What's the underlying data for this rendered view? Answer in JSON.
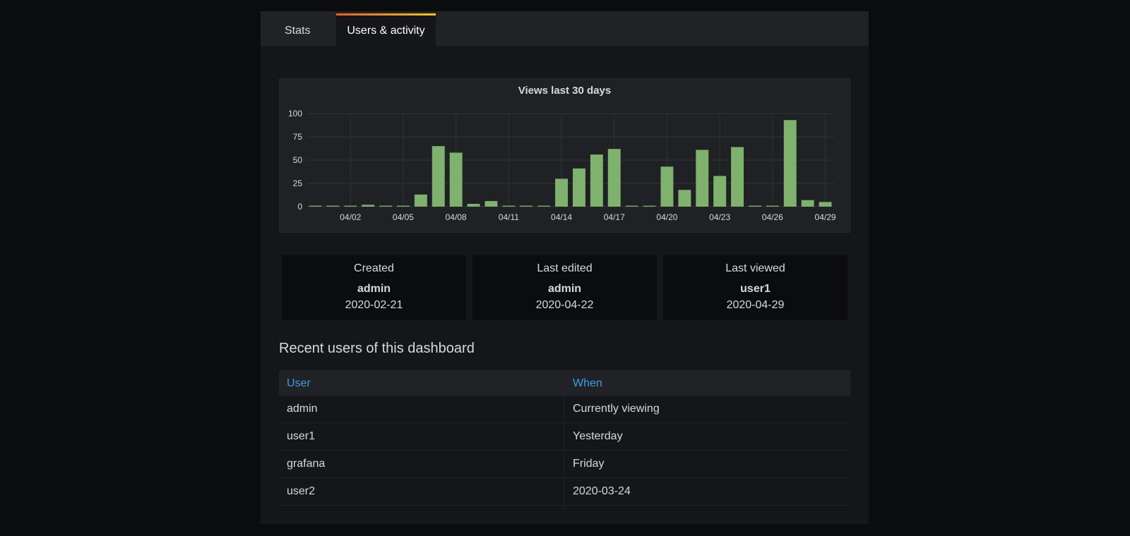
{
  "tabs": [
    {
      "label": "Stats",
      "active": false
    },
    {
      "label": "Users & activity",
      "active": true
    }
  ],
  "chart_data": {
    "type": "bar",
    "title": "Views last 30 days",
    "xlabel": "",
    "ylabel": "",
    "ylim": [
      0,
      100
    ],
    "yticks": [
      "100",
      "75",
      "50",
      "25",
      "0"
    ],
    "categories": [
      "03/31",
      "04/01",
      "04/02",
      "04/03",
      "04/04",
      "04/05",
      "04/06",
      "04/07",
      "04/08",
      "04/09",
      "04/10",
      "04/11",
      "04/12",
      "04/13",
      "04/14",
      "04/15",
      "04/16",
      "04/17",
      "04/18",
      "04/19",
      "04/20",
      "04/21",
      "04/22",
      "04/23",
      "04/24",
      "04/25",
      "04/26",
      "04/27",
      "04/28",
      "04/29"
    ],
    "xtick_labels": [
      "04/02",
      "04/05",
      "04/08",
      "04/11",
      "04/14",
      "04/17",
      "04/20",
      "04/23",
      "04/26",
      "04/29"
    ],
    "values": [
      1,
      1,
      1,
      2,
      1,
      1,
      13,
      65,
      58,
      3,
      6,
      1,
      1,
      1,
      30,
      41,
      56,
      62,
      1,
      1,
      43,
      18,
      61,
      33,
      64,
      1,
      1,
      93,
      7,
      5
    ],
    "bar_color": "#7eb26d",
    "grid": true
  },
  "stats": [
    {
      "label": "Created",
      "user": "admin",
      "date": "2020-02-21"
    },
    {
      "label": "Last edited",
      "user": "admin",
      "date": "2020-04-22"
    },
    {
      "label": "Last viewed",
      "user": "user1",
      "date": "2020-04-29"
    }
  ],
  "recent": {
    "title": "Recent users of this dashboard",
    "columns": [
      "User",
      "When"
    ],
    "rows": [
      [
        "admin",
        "Currently viewing"
      ],
      [
        "user1",
        "Yesterday"
      ],
      [
        "grafana",
        "Friday"
      ],
      [
        "user2",
        "2020-03-24"
      ]
    ]
  },
  "colors": {
    "accent": "#33a2e5",
    "bar": "#7eb26d",
    "tab_gradient_start": "#f05a28",
    "tab_gradient_end": "#fbca0a"
  }
}
